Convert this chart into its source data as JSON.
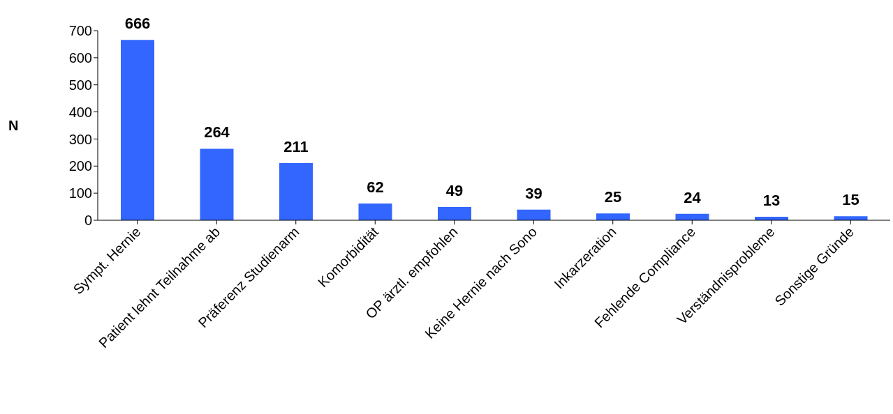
{
  "chart_data": {
    "type": "bar",
    "ylabel": "N",
    "categories": [
      "Sympt. Hernie",
      "Patient lehnt Teilnahme ab",
      "Präferenz Studienarm",
      "Komorbidität",
      "OP ärztl. empfohlen",
      "Keine Hernie nach Sono",
      "Inkarzeration",
      "Fehlende Compliance",
      "Verständnisprobleme",
      "Sonstige Gründe"
    ],
    "values": [
      666,
      264,
      211,
      62,
      49,
      39,
      25,
      24,
      13,
      15
    ],
    "color": "#3366ff",
    "ylim": [
      0,
      700
    ],
    "yticks": [
      0,
      100,
      200,
      300,
      400,
      500,
      600,
      700
    ],
    "grid": false,
    "legend": false,
    "data_labels": true
  }
}
